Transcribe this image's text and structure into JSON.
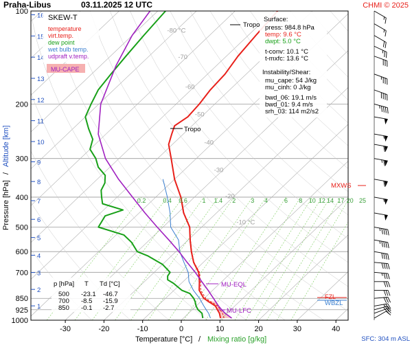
{
  "header": {
    "station": "Praha-Libus",
    "datetime": "03.11.2025 12 UTC",
    "copyright": "CHMI © 2025"
  },
  "axes": {
    "xlabel_temp": "Temperature [°C]",
    "xlabel_sep": "/",
    "xlabel_mix": "Mixing ratio [g/kg]",
    "ylabel_pressure": "Pressure [hPa]",
    "ylabel_sep": "/",
    "ylabel_altitude": "Altitude [km]",
    "sfc_note": "SFC: 304 m ASL"
  },
  "legend": {
    "title": "SKEW-T",
    "items": [
      {
        "label": "temperature",
        "color": "#e8201a"
      },
      {
        "label": "virt.temp.",
        "color": "#e8201a"
      },
      {
        "label": "dew point",
        "color": "#18a018"
      },
      {
        "label": "wet bulb temp.",
        "color": "#3a7fd0"
      },
      {
        "label": "udpraft v.temp.",
        "color": "#a020c0"
      }
    ],
    "mucape_tag": "MU-CAPE"
  },
  "info": {
    "surface_title": "Surface:",
    "surface": [
      {
        "text": "press: 984.8 hPa",
        "color": "#000000"
      },
      {
        "text": "temp: 9.6 °C",
        "color": "#e8201a"
      },
      {
        "text": "dwpt: 5.0 °C",
        "color": "#18a018"
      },
      {
        "text": "",
        "color": "#000000"
      },
      {
        "text": "t-conv: 10.1 °C",
        "color": "#000000"
      },
      {
        "text": "t-mxfc: 13.6 °C",
        "color": "#000000"
      }
    ],
    "instab_title": "Instability/Shear:",
    "instab": [
      "mu_cape: 54 J/kg",
      "mu_cinh: 0 J/kg",
      "",
      "bwd_06: 19.1 m/s",
      "bwd_01: 9.4 m/s",
      "srh_03: 114 m2/s2"
    ]
  },
  "table": {
    "headers": [
      "p [hPa]",
      "T",
      "Td [°C]"
    ],
    "rows": [
      [
        "500",
        "-23.1",
        "-46.7"
      ],
      [
        "700",
        "-8.5",
        "-15.9"
      ],
      [
        "850",
        "-0.1",
        "-2.7"
      ]
    ]
  },
  "levels": {
    "tropo_upper": "Tropo",
    "tropo_lower": "Tropo",
    "mu_eql": "MU-EQL",
    "mu_lfc": "MU-LFC",
    "mxws": "MXWS",
    "fzl": "FZL",
    "wbzl": "WBZL"
  },
  "colors": {
    "temperature": "#e8201a",
    "dewpoint": "#18a018",
    "wetbulb": "#3a7fd0",
    "parcel": "#a020c0",
    "isobar": "#9a9a9a",
    "isotherm": "#b0b0b0",
    "mixing_ratio": "#7acc5a",
    "cape_fill": "#f6b0b0"
  },
  "chart_data": {
    "type": "line",
    "title": "Praha-Libus 03.11.2025 12 UTC",
    "xlabel": "Temperature [°C] / Mixing ratio [g/kg]",
    "ylabel": "Pressure [hPa] / Altitude [km]",
    "x_ticks": [
      -30,
      -20,
      -10,
      0,
      10,
      20,
      30,
      40
    ],
    "pressure_ticks": [
      1000,
      925,
      850,
      700,
      600,
      500,
      400,
      300,
      200,
      100
    ],
    "altitude_ticks_km": [
      1,
      2,
      3,
      4,
      5,
      6,
      7,
      8,
      9,
      10,
      11,
      12,
      13,
      14,
      15,
      16
    ],
    "skewed_isotherms": [
      -80,
      -70,
      -60,
      -50,
      -40,
      -30,
      -20,
      -10
    ],
    "mixing_ratio_labels": [
      "0.2",
      "0.4",
      "0.6",
      "1",
      "1.4",
      "2",
      "3",
      "4",
      "6",
      "8",
      "10",
      "12",
      "14",
      "17",
      "20",
      "25"
    ],
    "mixing_ratio_values": [
      0.2,
      0.4,
      0.6,
      1,
      1.4,
      2,
      3,
      4,
      6,
      8,
      10,
      12,
      14,
      17,
      20,
      25
    ],
    "series": [
      {
        "name": "temperature",
        "color": "#e8201a",
        "points": [
          [
            985,
            9.6
          ],
          [
            950,
            8.0
          ],
          [
            925,
            6.5
          ],
          [
            900,
            5.0
          ],
          [
            850,
            -0.1
          ],
          [
            800,
            -3.5
          ],
          [
            750,
            -5.8
          ],
          [
            700,
            -8.5
          ],
          [
            650,
            -12.5
          ],
          [
            600,
            -16.0
          ],
          [
            550,
            -19.5
          ],
          [
            500,
            -23.1
          ],
          [
            450,
            -28.5
          ],
          [
            400,
            -33.5
          ],
          [
            350,
            -40.0
          ],
          [
            300,
            -46.5
          ],
          [
            270,
            -51.0
          ],
          [
            250,
            -53.0
          ],
          [
            235,
            -54.5
          ],
          [
            220,
            -53.5
          ],
          [
            200,
            -54.0
          ],
          [
            180,
            -55.0
          ],
          [
            160,
            -55.5
          ],
          [
            140,
            -57.0
          ],
          [
            120,
            -58.0
          ],
          [
            110,
            -58.5
          ],
          [
            100,
            -59.0
          ]
        ]
      },
      {
        "name": "virt.temp.",
        "color": "#e8201a",
        "points": [
          [
            985,
            10.5
          ],
          [
            950,
            8.8
          ],
          [
            925,
            7.2
          ],
          [
            900,
            5.6
          ],
          [
            850,
            0.4
          ],
          [
            800,
            -3.1
          ],
          [
            750,
            -5.5
          ],
          [
            700,
            -8.3
          ],
          [
            650,
            -12.4
          ],
          [
            600,
            -15.9
          ],
          [
            550,
            -19.4
          ],
          [
            500,
            -23.0
          ],
          [
            450,
            -28.4
          ],
          [
            400,
            -33.4
          ]
        ]
      },
      {
        "name": "dew point",
        "color": "#18a018",
        "points": [
          [
            985,
            5.0
          ],
          [
            950,
            3.5
          ],
          [
            925,
            1.5
          ],
          [
            900,
            0.0
          ],
          [
            870,
            -1.5
          ],
          [
            850,
            -2.7
          ],
          [
            820,
            -5.0
          ],
          [
            800,
            -8.0
          ],
          [
            780,
            -10.0
          ],
          [
            760,
            -12.0
          ],
          [
            740,
            -14.5
          ],
          [
            720,
            -15.5
          ],
          [
            700,
            -15.9
          ],
          [
            660,
            -20.0
          ],
          [
            620,
            -26.0
          ],
          [
            600,
            -30.0
          ],
          [
            560,
            -34.0
          ],
          [
            530,
            -38.0
          ],
          [
            500,
            -46.7
          ],
          [
            460,
            -48.0
          ],
          [
            440,
            -45.0
          ],
          [
            420,
            -52.0
          ],
          [
            400,
            -54.0
          ],
          [
            380,
            -56.0
          ],
          [
            360,
            -57.0
          ],
          [
            340,
            -59.0
          ],
          [
            320,
            -63.0
          ],
          [
            300,
            -66.0
          ],
          [
            280,
            -70.0
          ],
          [
            260,
            -72.0
          ],
          [
            240,
            -76.0
          ],
          [
            220,
            -80.0
          ],
          [
            200,
            -82.0
          ],
          [
            180,
            -84.0
          ],
          [
            160,
            -85.0
          ],
          [
            140,
            -86.0
          ],
          [
            120,
            -87.0
          ],
          [
            100,
            -88.0
          ]
        ]
      },
      {
        "name": "wet bulb temp.",
        "color": "#3a7fd0",
        "points": [
          [
            985,
            7.0
          ],
          [
            950,
            5.2
          ],
          [
            925,
            3.6
          ],
          [
            900,
            2.0
          ],
          [
            850,
            -1.2
          ],
          [
            800,
            -5.0
          ],
          [
            750,
            -8.5
          ],
          [
            700,
            -11.2
          ],
          [
            650,
            -15.0
          ],
          [
            600,
            -19.0
          ],
          [
            550,
            -22.5
          ],
          [
            500,
            -28.0
          ],
          [
            450,
            -32.0
          ],
          [
            400,
            -37.0
          ],
          [
            350,
            -43.0
          ]
        ]
      },
      {
        "name": "udpraft v.temp.",
        "color": "#a020c0",
        "points": [
          [
            985,
            12.5
          ],
          [
            950,
            9.5
          ],
          [
            925,
            7.6
          ],
          [
            900,
            5.8
          ],
          [
            850,
            2.4
          ],
          [
            800,
            -1.2
          ],
          [
            750,
            -5.2
          ],
          [
            700,
            -9.4
          ],
          [
            650,
            -14.2
          ],
          [
            600,
            -19.2
          ],
          [
            550,
            -25.0
          ],
          [
            500,
            -31.5
          ],
          [
            450,
            -38.5
          ],
          [
            400,
            -46.0
          ],
          [
            350,
            -54.5
          ],
          [
            300,
            -63.5
          ],
          [
            250,
            -72.0
          ],
          [
            200,
            -79.5
          ],
          [
            150,
            -86.0
          ],
          [
            120,
            -90.0
          ],
          [
            100,
            -92.0
          ]
        ]
      }
    ],
    "wind_barbs": [
      {
        "p": 985,
        "dir": 240,
        "speed_kt": 10
      },
      {
        "p": 950,
        "dir": 250,
        "speed_kt": 20
      },
      {
        "p": 925,
        "dir": 255,
        "speed_kt": 25
      },
      {
        "p": 900,
        "dir": 260,
        "speed_kt": 25
      },
      {
        "p": 850,
        "dir": 265,
        "speed_kt": 30
      },
      {
        "p": 800,
        "dir": 270,
        "speed_kt": 30
      },
      {
        "p": 750,
        "dir": 270,
        "speed_kt": 30
      },
      {
        "p": 700,
        "dir": 275,
        "speed_kt": 35
      },
      {
        "p": 650,
        "dir": 275,
        "speed_kt": 40
      },
      {
        "p": 600,
        "dir": 280,
        "speed_kt": 40
      },
      {
        "p": 550,
        "dir": 280,
        "speed_kt": 45
      },
      {
        "p": 500,
        "dir": 280,
        "speed_kt": 45
      },
      {
        "p": 450,
        "dir": 280,
        "speed_kt": 50
      },
      {
        "p": 400,
        "dir": 280,
        "speed_kt": 55
      },
      {
        "p": 350,
        "dir": 280,
        "speed_kt": 60
      },
      {
        "p": 300,
        "dir": 280,
        "speed_kt": 65
      },
      {
        "p": 270,
        "dir": 280,
        "speed_kt": 60
      },
      {
        "p": 250,
        "dir": 280,
        "speed_kt": 55
      },
      {
        "p": 220,
        "dir": 280,
        "speed_kt": 50
      },
      {
        "p": 200,
        "dir": 285,
        "speed_kt": 45
      },
      {
        "p": 180,
        "dir": 290,
        "speed_kt": 40
      },
      {
        "p": 160,
        "dir": 290,
        "speed_kt": 35
      },
      {
        "p": 140,
        "dir": 290,
        "speed_kt": 30
      },
      {
        "p": 130,
        "dir": 295,
        "speed_kt": 25
      },
      {
        "p": 120,
        "dir": 300,
        "speed_kt": 20
      },
      {
        "p": 110,
        "dir": 300,
        "speed_kt": 15
      },
      {
        "p": 100,
        "dir": 300,
        "speed_kt": 15
      }
    ],
    "grid": true,
    "legend_position": "top-left"
  }
}
